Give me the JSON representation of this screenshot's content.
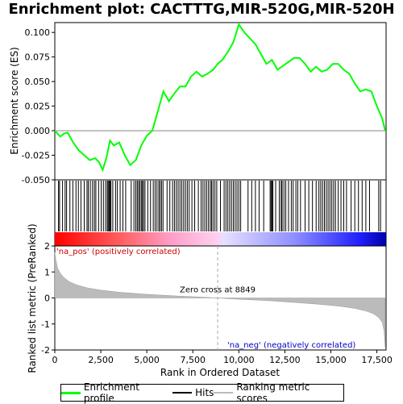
{
  "title": "Enrichment plot: CACTTTG,MIR-520G,MIR-520H",
  "chart_data": [
    {
      "type": "line",
      "panel": "enrichment",
      "ylabel": "Enrichment score (ES)",
      "ylim": [
        -0.05,
        0.11
      ],
      "yticks": [
        -0.05,
        -0.025,
        0.0,
        0.025,
        0.05,
        0.075,
        0.1
      ],
      "ytick_labels": [
        "-0.050",
        "-0.025",
        "0.000",
        "0.025",
        "0.050",
        "0.075",
        "0.100"
      ],
      "xlim": [
        0,
        18000
      ],
      "color": "#00ff00",
      "series": [
        {
          "name": "Enrichment profile",
          "x": [
            0,
            300,
            500,
            700,
            1000,
            1300,
            1600,
            1900,
            2200,
            2400,
            2600,
            2800,
            3000,
            3200,
            3500,
            3800,
            4100,
            4400,
            4700,
            5000,
            5300,
            5600,
            5900,
            6200,
            6500,
            6800,
            7100,
            7400,
            7700,
            8000,
            8300,
            8600,
            8849,
            9100,
            9400,
            9700,
            10000,
            10300,
            10600,
            10900,
            11200,
            11500,
            11800,
            12100,
            12400,
            12700,
            13000,
            13300,
            13600,
            13900,
            14200,
            14500,
            14800,
            15100,
            15400,
            15700,
            16000,
            16300,
            16600,
            16900,
            17200,
            17500,
            17800,
            17950
          ],
          "values": [
            0.0,
            -0.006,
            -0.003,
            -0.002,
            -0.012,
            -0.02,
            -0.025,
            -0.03,
            -0.028,
            -0.032,
            -0.04,
            -0.028,
            -0.01,
            -0.015,
            -0.012,
            -0.025,
            -0.035,
            -0.03,
            -0.015,
            -0.005,
            0.0,
            0.02,
            0.04,
            0.03,
            0.038,
            0.045,
            0.045,
            0.055,
            0.06,
            0.055,
            0.058,
            0.062,
            0.068,
            0.072,
            0.08,
            0.09,
            0.108,
            0.1,
            0.094,
            0.088,
            0.078,
            0.068,
            0.072,
            0.062,
            0.066,
            0.07,
            0.074,
            0.074,
            0.068,
            0.06,
            0.065,
            0.06,
            0.062,
            0.068,
            0.068,
            0.062,
            0.058,
            0.048,
            0.04,
            0.042,
            0.04,
            0.025,
            0.012,
            0.0
          ]
        }
      ]
    },
    {
      "type": "hits",
      "panel": "hits",
      "series": [
        {
          "name": "Hits",
          "x": [
            200,
            260,
            420,
            560,
            640,
            820,
            980,
            1150,
            1280,
            1420,
            1600,
            1750,
            1820,
            1930,
            2050,
            2150,
            2230,
            2380,
            2520,
            2640,
            2760,
            2850,
            2900,
            2950,
            3000,
            3050,
            3150,
            3300,
            3400,
            3550,
            3700,
            3850,
            4150,
            4300,
            4400,
            4480,
            4550,
            4620,
            4700,
            4760,
            4820,
            4900,
            5050,
            5200,
            5350,
            5450,
            5550,
            5650,
            5720,
            5800,
            5880,
            6100,
            6250,
            6400,
            6500,
            6600,
            6700,
            6800,
            6900,
            7000,
            7100,
            7200,
            7300,
            7450,
            7600,
            7800,
            7950,
            8050,
            8150,
            8250,
            8350,
            8450,
            8520,
            8600,
            8700,
            8800,
            9000,
            9200,
            9300,
            9400,
            9500,
            9600,
            9700,
            9800,
            9900,
            10000,
            10100,
            10500,
            10700,
            10900,
            11100,
            11350,
            11700,
            11750,
            11800,
            11850,
            12000,
            12200,
            12300,
            12350,
            12450,
            12550,
            12700,
            12850,
            12950,
            13100,
            13200,
            13350,
            13600,
            13800,
            14000,
            14200,
            14350,
            14450,
            14550,
            14650,
            14750,
            14850,
            14950,
            15050,
            15150,
            15250,
            15400,
            15550,
            15700,
            15850,
            16100,
            16300,
            16500,
            16700,
            16900,
            17100,
            17600,
            17700
          ]
        }
      ],
      "annotations": [
        "'na_pos' (positively correlated)",
        "'na_neg' (negatively correlated)"
      ]
    },
    {
      "type": "area",
      "panel": "ranked_metric",
      "ylabel": "Ranked list metric (PreRanked)",
      "xlabel": "Rank in Ordered Dataset",
      "ylim": [
        -2,
        2
      ],
      "yticks": [
        -2,
        -1,
        0,
        1,
        2
      ],
      "ytick_labels": [
        "-2",
        "-1",
        "0",
        "1",
        "2"
      ],
      "xlim": [
        0,
        18000
      ],
      "xticks": [
        0,
        2500,
        5000,
        7500,
        10000,
        12500,
        15000,
        17500
      ],
      "xtick_labels": [
        "0",
        "2,500",
        "5,000",
        "7,500",
        "10,000",
        "12,500",
        "15,000",
        "17,500"
      ],
      "zero_cross": 8849,
      "zero_cross_label": "Zero cross at 8849",
      "series": [
        {
          "name": "Ranking metric scores",
          "x": [
            0,
            50,
            150,
            300,
            500,
            800,
            1200,
            1800,
            2500,
            3500,
            5000,
            6500,
            8000,
            8849,
            10000,
            11500,
            13000,
            14500,
            15500,
            16300,
            16900,
            17300,
            17600,
            17800,
            17900,
            17950
          ],
          "values": [
            1.75,
            1.5,
            1.15,
            0.95,
            0.78,
            0.62,
            0.5,
            0.38,
            0.3,
            0.22,
            0.14,
            0.08,
            0.03,
            0.0,
            -0.05,
            -0.1,
            -0.17,
            -0.25,
            -0.32,
            -0.4,
            -0.5,
            -0.6,
            -0.75,
            -0.95,
            -1.3,
            -1.9
          ]
        }
      ]
    }
  ],
  "legend": {
    "items": [
      {
        "label": "Enrichment profile",
        "color": "#00ff00"
      },
      {
        "label": "Hits",
        "color": "#000000"
      },
      {
        "label": "Ranking metric scores",
        "color": "#bbbbbb"
      }
    ]
  }
}
